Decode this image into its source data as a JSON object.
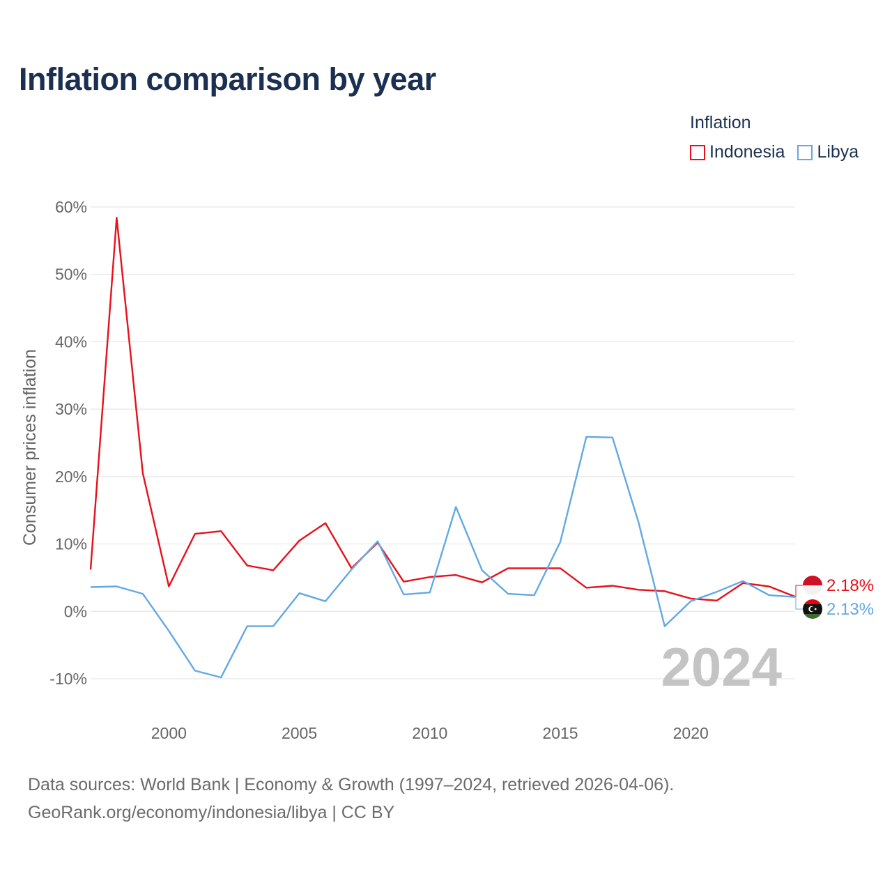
{
  "title": "Inflation comparison by year",
  "legend": {
    "title": "Inflation",
    "items": [
      {
        "name": "Indonesia",
        "color": "#e8101a"
      },
      {
        "name": "Libya",
        "color": "#62a8e5"
      }
    ]
  },
  "chart_data": {
    "type": "line",
    "title": "Inflation comparison by year",
    "xlabel": "",
    "ylabel": "Consumer prices inflation",
    "ylim": [
      -10,
      60
    ],
    "yticks": [
      -10,
      0,
      10,
      20,
      30,
      40,
      50,
      60
    ],
    "ytick_labels": [
      "-10%",
      "0%",
      "10%",
      "20%",
      "30%",
      "40%",
      "50%",
      "60%"
    ],
    "xlim": [
      1997,
      2024
    ],
    "xticks": [
      2000,
      2005,
      2010,
      2015,
      2020
    ],
    "xtick_labels": [
      "2000",
      "2005",
      "2010",
      "2015",
      "2020"
    ],
    "x": [
      1997,
      1998,
      1999,
      2000,
      2001,
      2002,
      2003,
      2004,
      2005,
      2006,
      2007,
      2008,
      2009,
      2010,
      2011,
      2012,
      2013,
      2014,
      2015,
      2016,
      2017,
      2018,
      2019,
      2020,
      2021,
      2022,
      2023,
      2024
    ],
    "series": [
      {
        "name": "Indonesia",
        "color": "#e8101a",
        "values": [
          6.2,
          58.4,
          20.5,
          3.7,
          11.5,
          11.9,
          6.8,
          6.1,
          10.5,
          13.1,
          6.4,
          10.2,
          4.4,
          5.1,
          5.4,
          4.3,
          6.4,
          6.4,
          6.4,
          3.5,
          3.8,
          3.2,
          3.0,
          1.9,
          1.6,
          4.2,
          3.7,
          2.18
        ]
      },
      {
        "name": "Libya",
        "color": "#62a8e5",
        "values": [
          3.6,
          3.7,
          2.6,
          -2.9,
          -8.8,
          -9.8,
          -2.2,
          -2.2,
          2.7,
          1.5,
          6.2,
          10.4,
          2.5,
          2.8,
          15.5,
          6.1,
          2.6,
          2.4,
          10.3,
          25.9,
          25.8,
          13.2,
          -2.2,
          1.5,
          2.9,
          4.5,
          2.4,
          2.13
        ]
      }
    ],
    "end_labels": [
      "2.18%",
      "2.13%"
    ],
    "year_watermark": "2024",
    "grid": true,
    "legend_position": "top-right"
  },
  "footer": {
    "line1": "Data sources: World Bank | Economy & Growth (1997–2024, retrieved 2026-04-06).",
    "line2": "GeoRank.org/economy/indonesia/libya | CC BY"
  }
}
